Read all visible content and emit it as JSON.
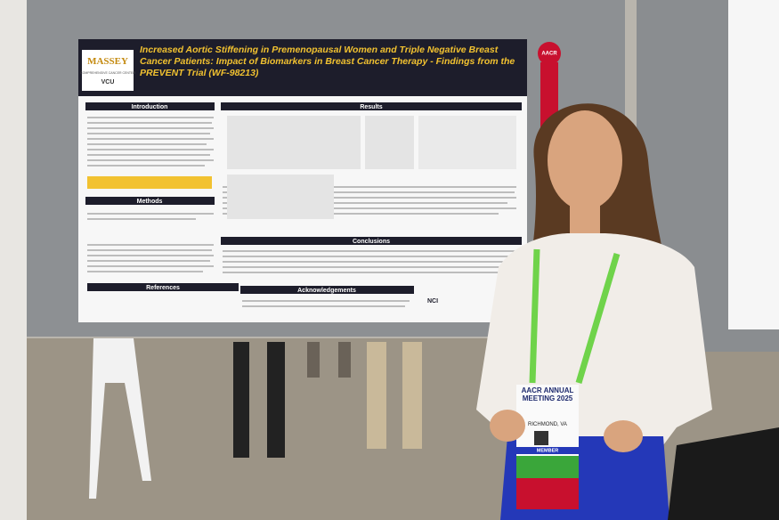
{
  "poster": {
    "title": "Increased Aortic Stiffening in Premenopausal Women and Triple Negative Breast Cancer Patients: Impact of Biomarkers in Breast Cancer Therapy - Findings from the PREVENT Trial (WF-98213)",
    "logo": {
      "name": "MASSEY",
      "subtitle": "COMPREHENSIVE CANCER CENTER",
      "affiliation": "VCU"
    },
    "sections": {
      "introduction": "Introduction",
      "methods": "Methods",
      "references": "References",
      "results": "Results",
      "conclusions": "Conclusions",
      "acknowledgements": "Acknowledgements"
    },
    "sponsor": "NCI"
  },
  "ribbon": "AACR",
  "badge": {
    "event": "AACR ANNUAL MEETING 2025",
    "location": "RICHMOND, VA",
    "role": "MEMBER"
  }
}
